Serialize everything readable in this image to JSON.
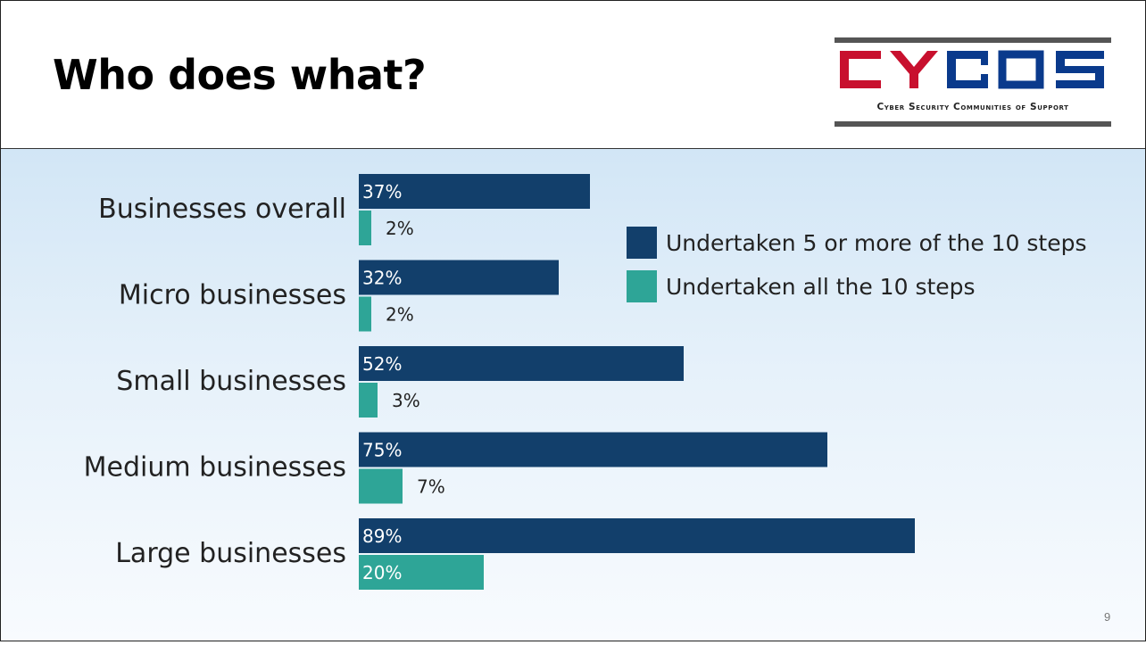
{
  "slide": {
    "title": "Who does what?",
    "page_number": "9"
  },
  "logo": {
    "wordmark": "CYCOS",
    "tagline": "Cyber Security Communities of Support"
  },
  "colors": {
    "series_dark": "#123f6b",
    "series_teal": "#2ea597",
    "text_dark": "#222222",
    "logo_red": "#c8102e",
    "logo_blue": "#0a3a8c"
  },
  "chart_data": {
    "type": "bar",
    "orientation": "horizontal",
    "categories": [
      "Businesses overall",
      "Micro businesses",
      "Small businesses",
      "Medium businesses",
      "Large businesses"
    ],
    "series": [
      {
        "name": "Undertaken 5 or more of the 10 steps",
        "values": [
          37,
          32,
          52,
          75,
          89
        ],
        "labels": [
          "37%",
          "32%",
          "52%",
          "75%",
          "89%"
        ]
      },
      {
        "name": "Undertaken all the 10 steps",
        "values": [
          2,
          2,
          3,
          7,
          20
        ],
        "labels": [
          "2%",
          "2%",
          "3%",
          "7%",
          "20%"
        ]
      }
    ],
    "xlim": [
      0,
      100
    ],
    "grid": false,
    "legend_position": "top-right"
  }
}
